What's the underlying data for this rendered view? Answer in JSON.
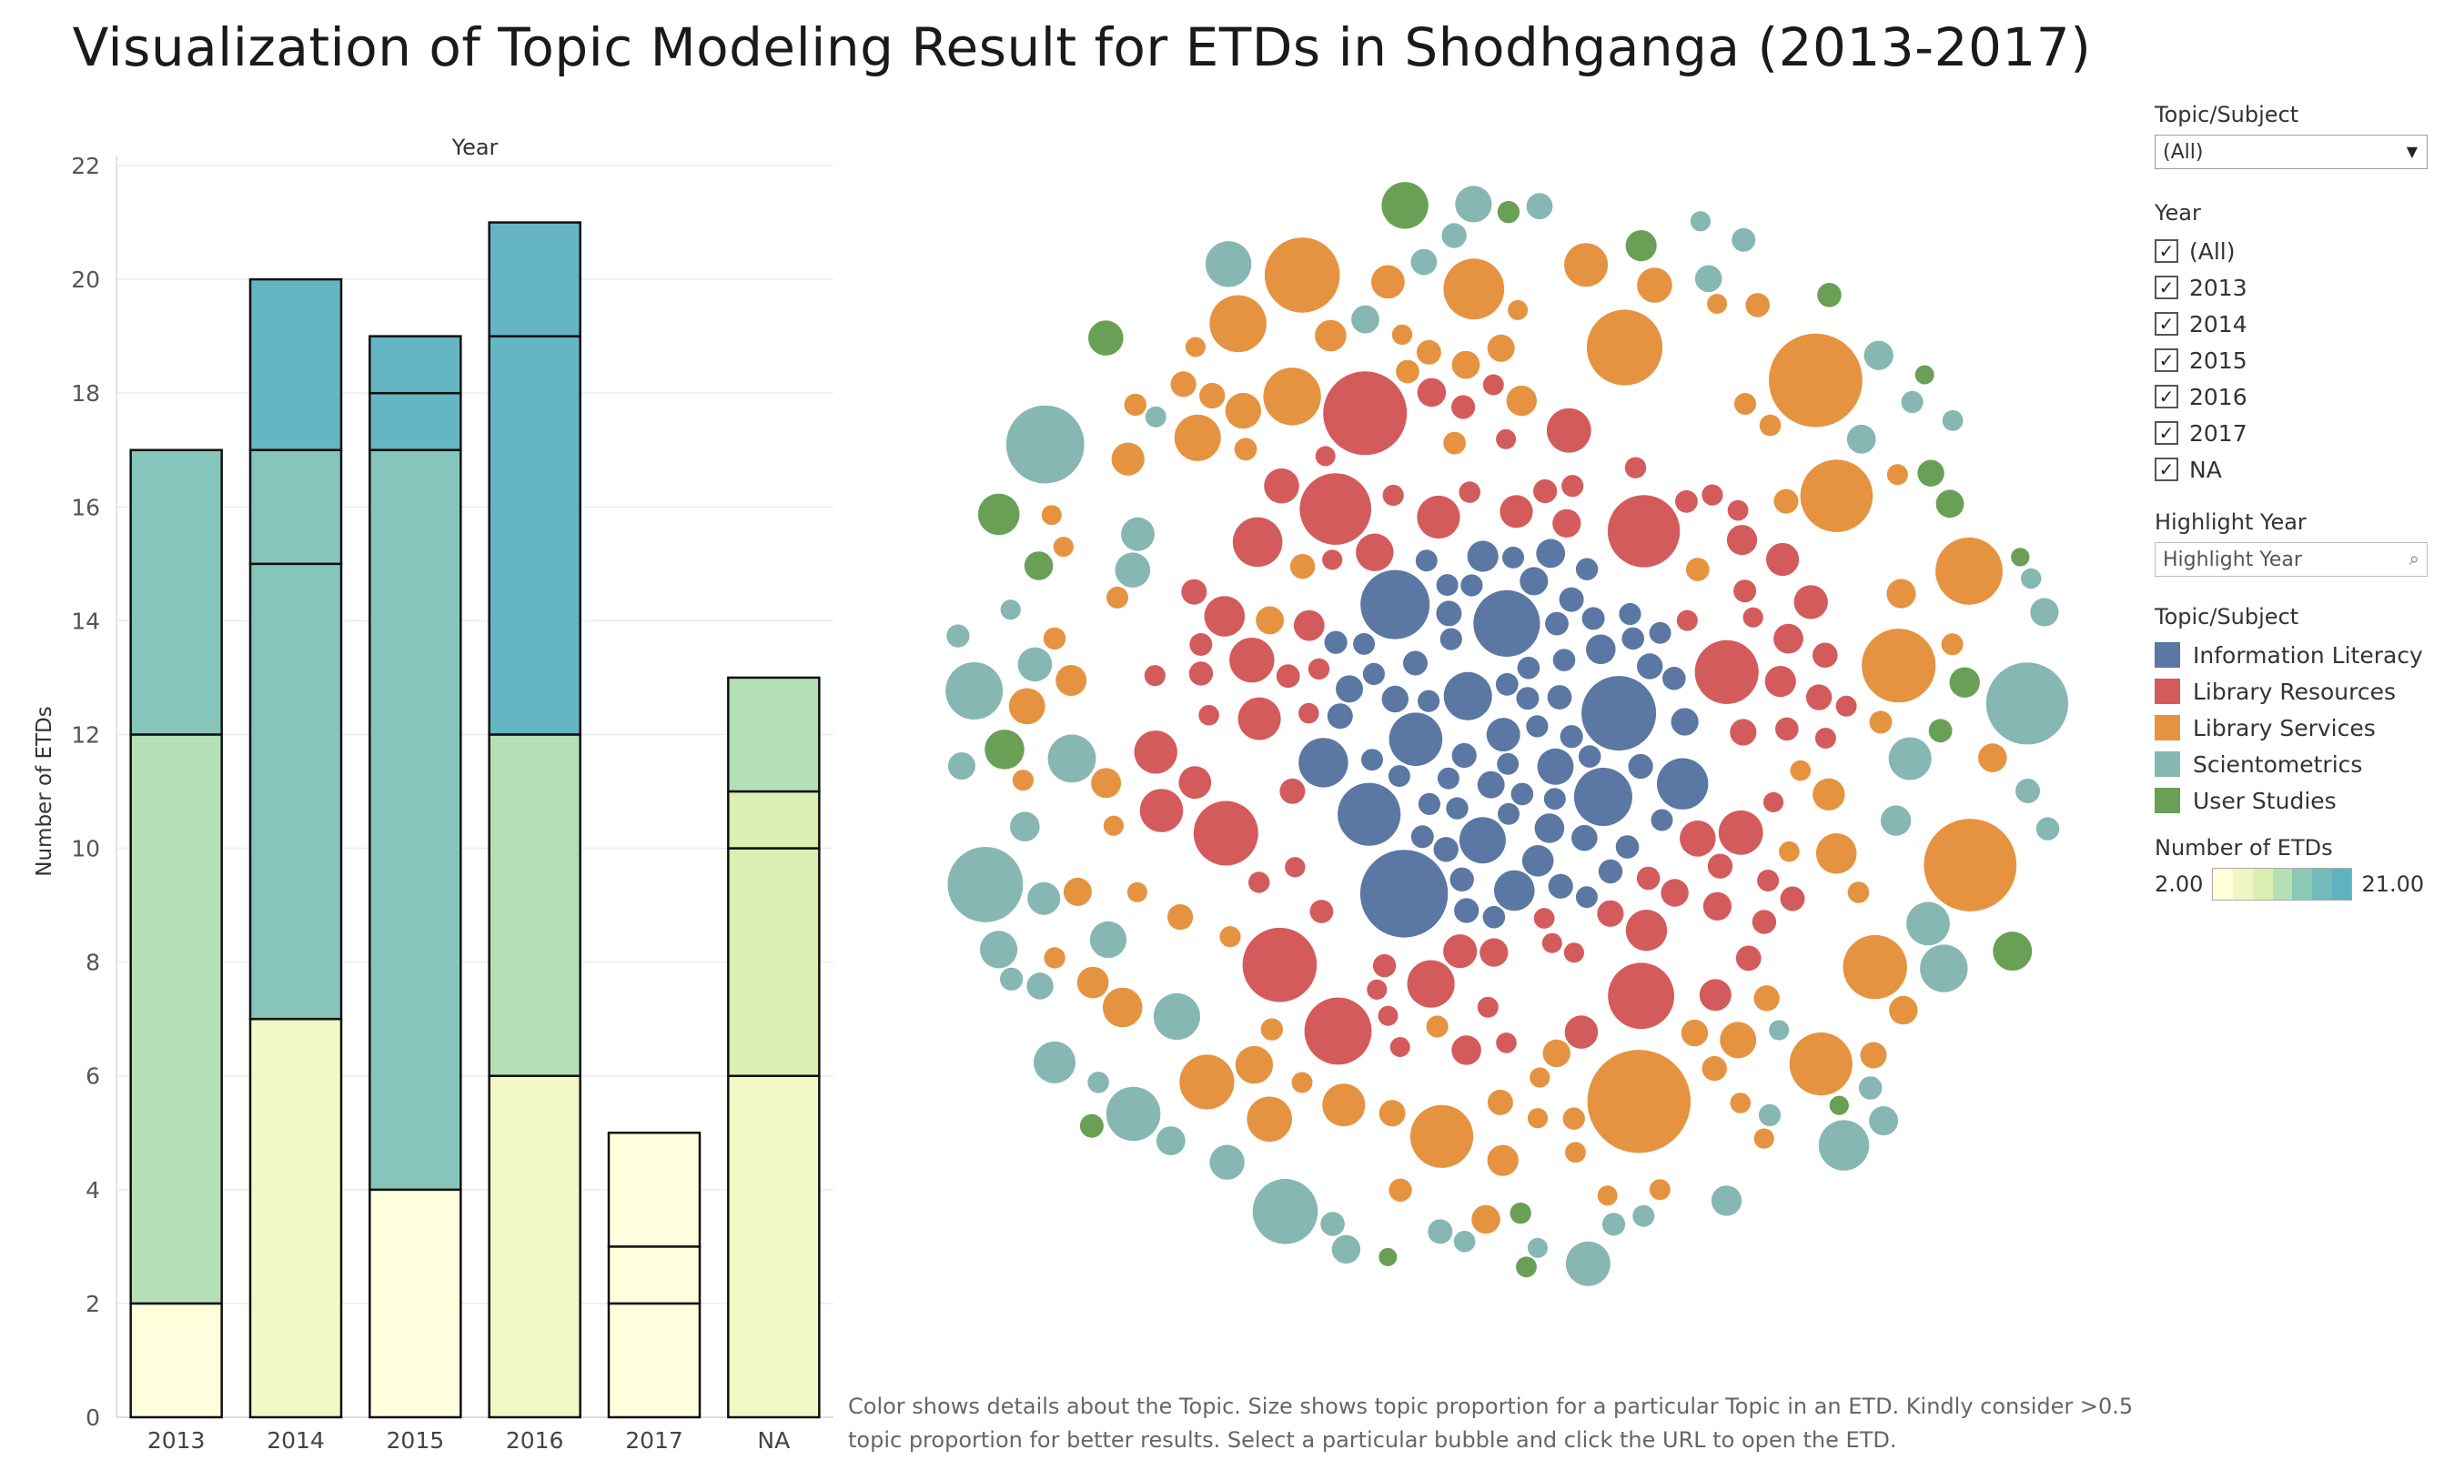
{
  "title": "Visualization of Topic Modeling Result for ETDs in Shodhganga (2013-2017)",
  "footnote": "Color shows details about the Topic.  Size shows topic proportion for a particular Topic in an ETD. Kindly consider >0.5 topic proportion for better results. Select a particular bubble and click the URL to open the ETD.",
  "filters": {
    "topic_title": "Topic/Subject",
    "topic_value": "(All)",
    "year_title": "Year",
    "year_options": [
      "(All)",
      "2013",
      "2014",
      "2015",
      "2016",
      "2017",
      "NA"
    ],
    "checkmark": "✓",
    "highlight_title": "Highlight Year",
    "highlight_placeholder": "Highlight Year"
  },
  "legend": {
    "title": "Topic/Subject",
    "items": [
      {
        "label": "Information Literacy",
        "color": "#5b77a3"
      },
      {
        "label": "Library Resources",
        "color": "#d45b5c"
      },
      {
        "label": "Library Services",
        "color": "#e59340"
      },
      {
        "label": "Scientometrics",
        "color": "#86b7b2"
      },
      {
        "label": "User Studies",
        "color": "#6aa055"
      }
    ],
    "size_title": "Number of ETDs",
    "size_min": "2.00",
    "size_max": "21.00",
    "ramp_colors": [
      "#ffffd9",
      "#eef7c3",
      "#d9efb3",
      "#b5dfb5",
      "#8cc9b4",
      "#71bcbb",
      "#5fb3c1"
    ]
  },
  "chart_data": [
    {
      "type": "bar",
      "stacked": true,
      "title": "Year",
      "xlabel": "",
      "ylabel": "Number of ETDs",
      "ylim": [
        0,
        22
      ],
      "yticks": [
        0,
        2,
        4,
        6,
        8,
        10,
        12,
        14,
        16,
        18,
        20,
        22
      ],
      "categories": [
        "2013",
        "2014",
        "2015",
        "2016",
        "2017",
        "NA"
      ],
      "grid": true,
      "stacks": [
        {
          "category": "2013",
          "segments": [
            {
              "value": 2,
              "color": "#ffffde"
            },
            {
              "value": 10,
              "color": "#b5dfb6"
            },
            {
              "value": 5,
              "color": "#86c5b9"
            }
          ]
        },
        {
          "category": "2014",
          "segments": [
            {
              "value": 7,
              "color": "#f2f9c6"
            },
            {
              "value": 8,
              "color": "#86c5b9"
            },
            {
              "value": 2,
              "color": "#86c5b9"
            },
            {
              "value": 3,
              "color": "#65b5c3"
            }
          ]
        },
        {
          "category": "2015",
          "segments": [
            {
              "value": 4,
              "color": "#ffffde"
            },
            {
              "value": 13,
              "color": "#86c5b9"
            },
            {
              "value": 1,
              "color": "#65b5c3"
            },
            {
              "value": 1,
              "color": "#65b5c3"
            }
          ]
        },
        {
          "category": "2016",
          "segments": [
            {
              "value": 6,
              "color": "#f2f9c6"
            },
            {
              "value": 6,
              "color": "#b5dfb6"
            },
            {
              "value": 7,
              "color": "#65b5c3"
            },
            {
              "value": 2,
              "color": "#65b5c3"
            }
          ]
        },
        {
          "category": "2017",
          "segments": [
            {
              "value": 2,
              "color": "#ffffde"
            },
            {
              "value": 1,
              "color": "#ffffde"
            },
            {
              "value": 2,
              "color": "#ffffde"
            }
          ]
        },
        {
          "category": "NA",
          "segments": [
            {
              "value": 6,
              "color": "#f2f9c6"
            },
            {
              "value": 4,
              "color": "#d9efb3"
            },
            {
              "value": 1,
              "color": "#d9efb3"
            },
            {
              "value": 2,
              "color": "#b5dfb6"
            }
          ]
        }
      ]
    },
    {
      "type": "scatter",
      "subtype": "packed-bubble",
      "title": "",
      "encoding": {
        "color": "Topic/Subject",
        "size": "topic proportion"
      },
      "groups": [
        {
          "topic": "Information Literacy",
          "color": "#5b77a3",
          "bubble_count": 75
        },
        {
          "topic": "Library Resources",
          "color": "#d45b5c",
          "bubble_count": 90
        },
        {
          "topic": "Library Services",
          "color": "#e59340",
          "bubble_count": 95
        },
        {
          "topic": "Scientometrics",
          "color": "#86b7b2",
          "bubble_count": 60
        },
        {
          "topic": "User Studies",
          "color": "#6aa055",
          "bubble_count": 20
        }
      ]
    }
  ]
}
